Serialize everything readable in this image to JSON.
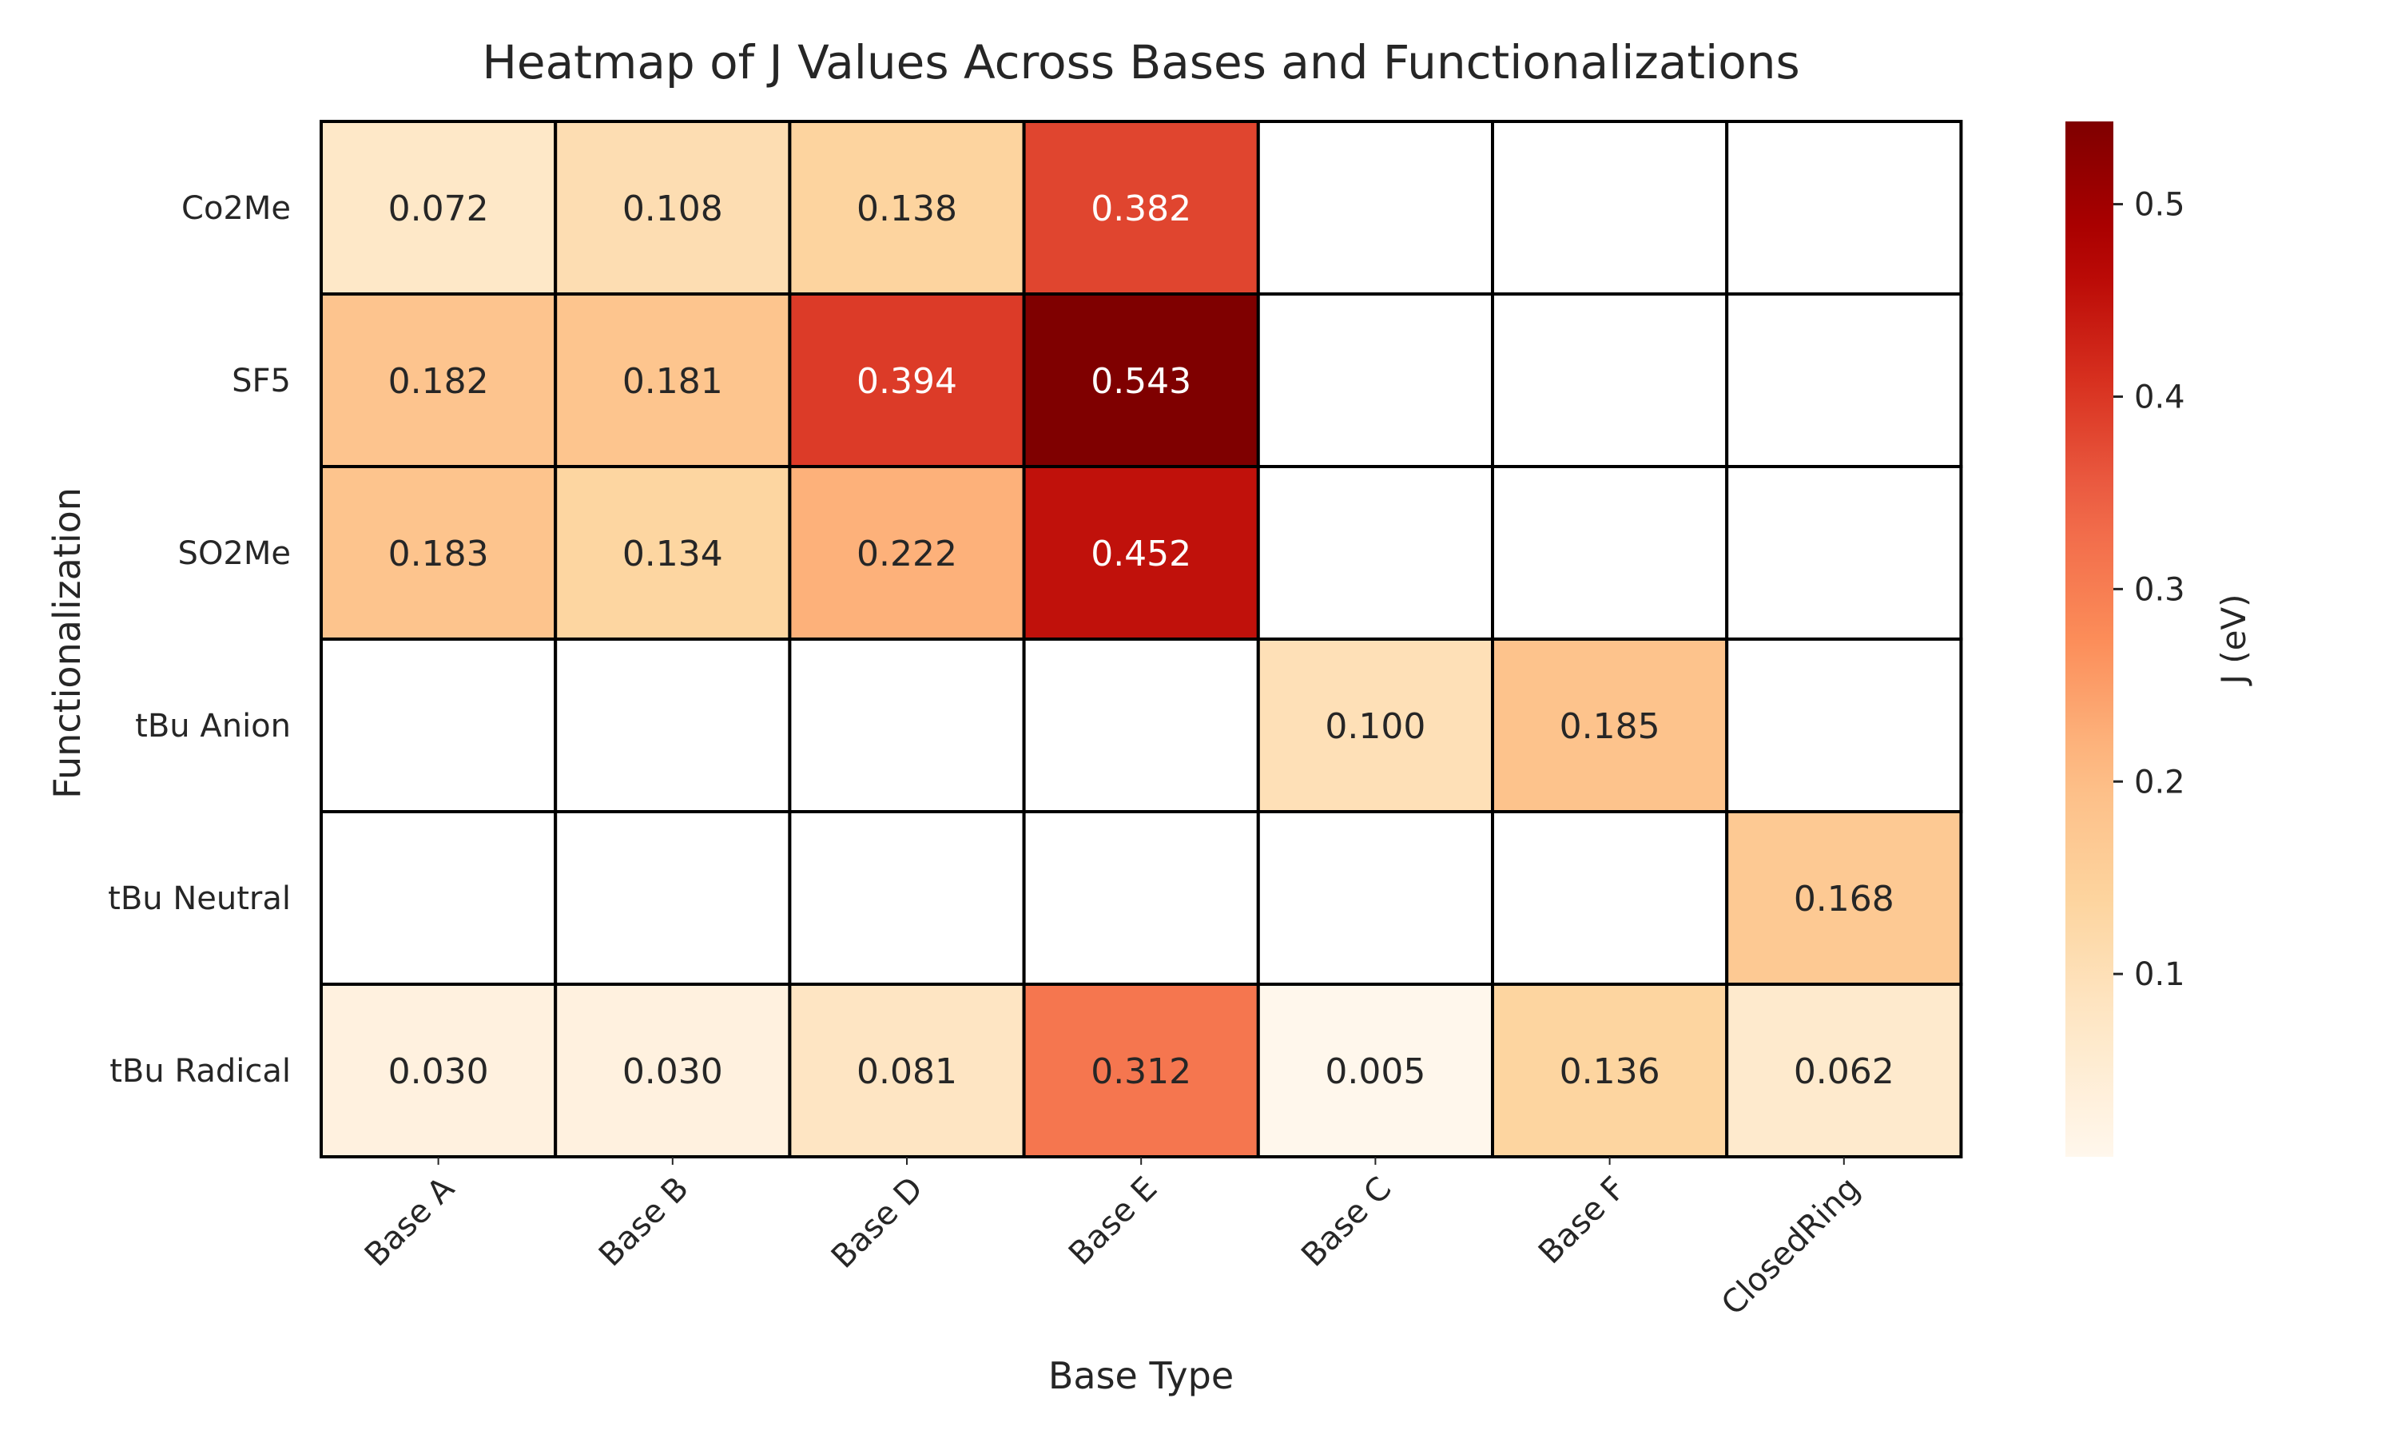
{
  "chart_data": {
    "type": "heatmap",
    "title": "Heatmap of J Values Across Bases and Functionalizations",
    "xlabel": "Base Type",
    "ylabel": "Functionalization",
    "x_categories": [
      "Base A",
      "Base B",
      "Base D",
      "Base E",
      "Base C",
      "Base F",
      "ClosedRing"
    ],
    "y_categories": [
      "Co2Me",
      "SF5",
      "SO2Me",
      "tBu Anion",
      "tBu Neutral",
      "tBu Radical"
    ],
    "values": [
      [
        0.072,
        0.108,
        0.138,
        0.382,
        null,
        null,
        null
      ],
      [
        0.182,
        0.181,
        0.394,
        0.543,
        null,
        null,
        null
      ],
      [
        0.183,
        0.134,
        0.222,
        0.452,
        null,
        null,
        null
      ],
      [
        null,
        null,
        null,
        null,
        0.1,
        0.185,
        null
      ],
      [
        null,
        null,
        null,
        null,
        null,
        null,
        0.168
      ],
      [
        0.03,
        0.03,
        0.081,
        0.312,
        0.005,
        0.136,
        0.062
      ]
    ],
    "cell_labels": [
      [
        "0.072",
        "0.108",
        "0.138",
        "0.382",
        "",
        "",
        ""
      ],
      [
        "0.182",
        "0.181",
        "0.394",
        "0.543",
        "",
        "",
        ""
      ],
      [
        "0.183",
        "0.134",
        "0.222",
        "0.452",
        "",
        "",
        ""
      ],
      [
        "",
        "",
        "",
        "",
        "0.100",
        "0.185",
        ""
      ],
      [
        "",
        "",
        "",
        "",
        "",
        "",
        "0.168"
      ],
      [
        "0.030",
        "0.030",
        "0.081",
        "0.312",
        "0.005",
        "0.136",
        "0.062"
      ]
    ],
    "colormap": "OrRd",
    "colorbar": {
      "label": "J (eV)",
      "vmin": 0.005,
      "vmax": 0.543,
      "ticks": [
        0.1,
        0.2,
        0.3,
        0.4,
        0.5
      ],
      "tick_labels": [
        "0.1",
        "0.2",
        "0.3",
        "0.4",
        "0.5"
      ]
    },
    "missing_color": "#ffffff",
    "cell_border_color": "#000000",
    "grid": false
  }
}
